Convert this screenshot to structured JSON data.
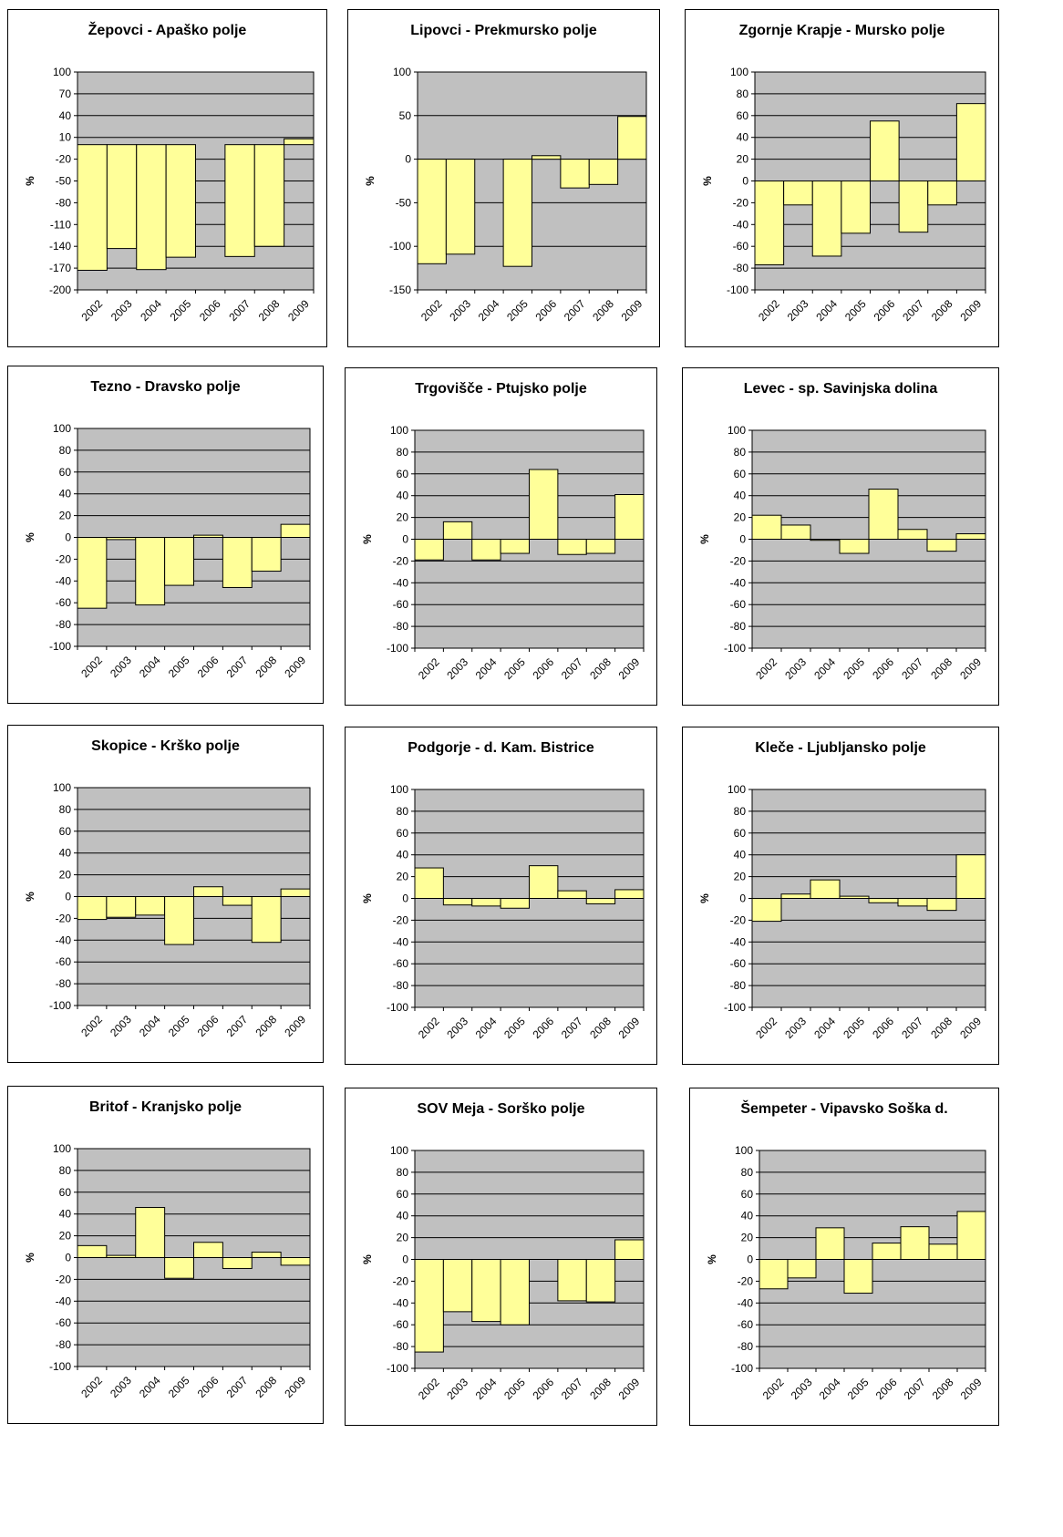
{
  "chart_data": [
    {
      "type": "bar",
      "title": "Žepovci - Apaško polje",
      "ylabel": "%",
      "categories": [
        "2002",
        "2003",
        "2004",
        "2005",
        "2006",
        "2007",
        "2008",
        "2009"
      ],
      "values": [
        -173,
        -143,
        -172,
        -155,
        null,
        -154,
        -140,
        8
      ],
      "ylim": [
        -200,
        100
      ],
      "yticks": [
        100,
        70,
        40,
        10,
        -20,
        -50,
        -80,
        -110,
        -140,
        -170,
        -200
      ],
      "grid": true
    },
    {
      "type": "bar",
      "title": "Lipovci - Prekmursko polje",
      "ylabel": "%",
      "categories": [
        "2002",
        "2003",
        "2004",
        "2005",
        "2006",
        "2007",
        "2008",
        "2009"
      ],
      "values": [
        -120,
        -109,
        null,
        -123,
        4,
        -33,
        -29,
        49
      ],
      "ylim": [
        -150,
        100
      ],
      "yticks": [
        100,
        50,
        0,
        -50,
        -100,
        -150
      ],
      "grid": true
    },
    {
      "type": "bar",
      "title": "Zgornje Krapje - Mursko polje",
      "ylabel": "%",
      "categories": [
        "2002",
        "2003",
        "2004",
        "2005",
        "2006",
        "2007",
        "2008",
        "2009"
      ],
      "values": [
        -77,
        -22,
        -69,
        -48,
        55,
        -47,
        -22,
        71
      ],
      "ylim": [
        -100,
        100
      ],
      "yticks": [
        100,
        80,
        60,
        40,
        20,
        0,
        -20,
        -40,
        -60,
        -80,
        -100
      ],
      "grid": true
    },
    {
      "type": "bar",
      "title": "Tezno - Dravsko polje",
      "ylabel": "%",
      "categories": [
        "2002",
        "2003",
        "2004",
        "2005",
        "2006",
        "2007",
        "2008",
        "2009"
      ],
      "values": [
        -65,
        -2,
        -62,
        -44,
        2,
        -46,
        -31,
        12
      ],
      "ylim": [
        -100,
        100
      ],
      "yticks": [
        100,
        80,
        60,
        40,
        20,
        0,
        -20,
        -40,
        -60,
        -80,
        -100
      ],
      "grid": true
    },
    {
      "type": "bar",
      "title": "Trgovišče - Ptujsko polje",
      "ylabel": "%",
      "categories": [
        "2002",
        "2003",
        "2004",
        "2005",
        "2006",
        "2007",
        "2008",
        "2009"
      ],
      "values": [
        -19,
        16,
        -19,
        -13,
        64,
        -14,
        -13,
        41
      ],
      "ylim": [
        -100,
        100
      ],
      "yticks": [
        100,
        80,
        60,
        40,
        20,
        0,
        -20,
        -40,
        -60,
        -80,
        -100
      ],
      "grid": true
    },
    {
      "type": "bar",
      "title": "Levec - sp. Savinjska dolina",
      "ylabel": "%",
      "categories": [
        "2002",
        "2003",
        "2004",
        "2005",
        "2006",
        "2007",
        "2008",
        "2009"
      ],
      "values": [
        22,
        13,
        -1,
        -13,
        46,
        9,
        -11,
        5
      ],
      "ylim": [
        -100,
        100
      ],
      "yticks": [
        100,
        80,
        60,
        40,
        20,
        0,
        -20,
        -40,
        -60,
        -80,
        -100
      ],
      "grid": true
    },
    {
      "type": "bar",
      "title": "Skopice - Krško polje",
      "ylabel": "%",
      "categories": [
        "2002",
        "2003",
        "2004",
        "2005",
        "2006",
        "2007",
        "2008",
        "2009"
      ],
      "values": [
        -21,
        -19,
        -17,
        -44,
        9,
        -8,
        -42,
        7
      ],
      "ylim": [
        -100,
        100
      ],
      "yticks": [
        100,
        80,
        60,
        40,
        20,
        0,
        -20,
        -40,
        -60,
        -80,
        -100
      ],
      "grid": true
    },
    {
      "type": "bar",
      "title": "Podgorje - d. Kam. Bistrice",
      "ylabel": "%",
      "categories": [
        "2002",
        "2003",
        "2004",
        "2005",
        "2006",
        "2007",
        "2008",
        "2009"
      ],
      "values": [
        28,
        -6,
        -7,
        -9,
        30,
        7,
        -5,
        8
      ],
      "ylim": [
        -100,
        100
      ],
      "yticks": [
        100,
        80,
        60,
        40,
        20,
        0,
        -20,
        -40,
        -60,
        -80,
        -100
      ],
      "grid": true
    },
    {
      "type": "bar",
      "title": "Kleče - Ljubljansko polje",
      "ylabel": "%",
      "categories": [
        "2002",
        "2003",
        "2004",
        "2005",
        "2006",
        "2007",
        "2008",
        "2009"
      ],
      "values": [
        -21,
        4,
        17,
        2,
        -4,
        -7,
        -11,
        40
      ],
      "ylim": [
        -100,
        100
      ],
      "yticks": [
        100,
        80,
        60,
        40,
        20,
        0,
        -20,
        -40,
        -60,
        -80,
        -100
      ],
      "grid": true
    },
    {
      "type": "bar",
      "title": "Britof - Kranjsko polje",
      "ylabel": "%",
      "categories": [
        "2002",
        "2003",
        "2004",
        "2005",
        "2006",
        "2007",
        "2008",
        "2009"
      ],
      "values": [
        11,
        2,
        46,
        -19,
        14,
        -10,
        5,
        -7
      ],
      "ylim": [
        -100,
        100
      ],
      "yticks": [
        100,
        80,
        60,
        40,
        20,
        0,
        -20,
        -40,
        -60,
        -80,
        -100
      ],
      "grid": true
    },
    {
      "type": "bar",
      "title": "SOV Meja - Sorško polje",
      "ylabel": "%",
      "categories": [
        "2002",
        "2003",
        "2004",
        "2005",
        "2006",
        "2007",
        "2008",
        "2009"
      ],
      "values": [
        -85,
        -48,
        -57,
        -60,
        null,
        -38,
        -39,
        18
      ],
      "ylim": [
        -100,
        100
      ],
      "yticks": [
        100,
        80,
        60,
        40,
        20,
        0,
        -20,
        -40,
        -60,
        -80,
        -100
      ],
      "grid": true
    },
    {
      "type": "bar",
      "title": "Šempeter - Vipavsko Soška d.",
      "ylabel": "%",
      "categories": [
        "2002",
        "2003",
        "2004",
        "2005",
        "2006",
        "2007",
        "2008",
        "2009"
      ],
      "values": [
        -27,
        -17,
        29,
        -31,
        15,
        30,
        14,
        44
      ],
      "ylim": [
        -100,
        100
      ],
      "yticks": [
        100,
        80,
        60,
        40,
        20,
        0,
        -20,
        -40,
        -60,
        -80,
        -100
      ],
      "grid": true
    }
  ]
}
